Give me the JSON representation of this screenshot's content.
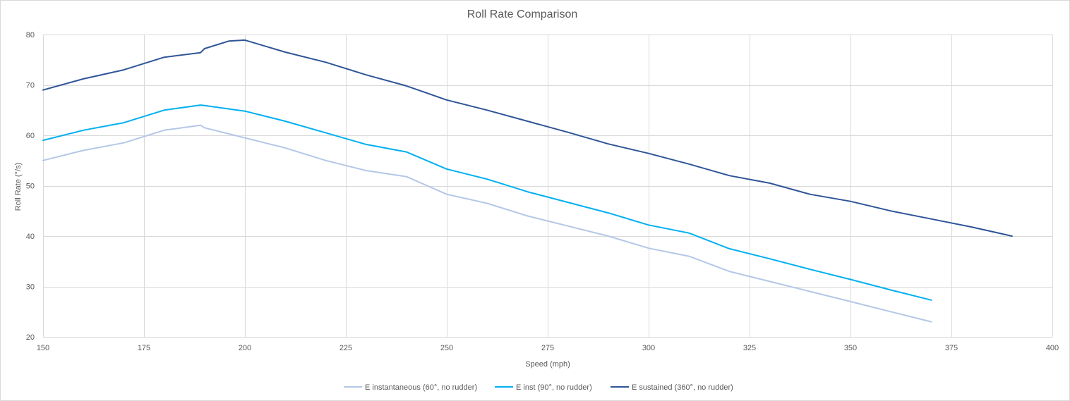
{
  "chart_data": {
    "type": "line",
    "title": "Roll Rate Comparison",
    "xlabel": "Speed (mph)",
    "ylabel": "Roll Rate (°/s)",
    "xlim": [
      150,
      400
    ],
    "ylim": [
      20,
      80
    ],
    "xticks": [
      150,
      175,
      200,
      225,
      250,
      275,
      300,
      325,
      350,
      375,
      400
    ],
    "yticks": [
      20,
      30,
      40,
      50,
      60,
      70,
      80
    ],
    "grid": true,
    "legend_position": "bottom",
    "series": [
      {
        "name": "E instantaneous (60°, no rudder)",
        "color": "#b4c7e7",
        "points": [
          [
            150,
            55
          ],
          [
            160,
            57
          ],
          [
            170,
            58.5
          ],
          [
            180,
            61
          ],
          [
            189,
            62
          ],
          [
            190,
            61.5
          ],
          [
            200,
            59.5
          ],
          [
            210,
            57.5
          ],
          [
            220,
            55
          ],
          [
            230,
            53
          ],
          [
            240,
            51.8
          ],
          [
            250,
            48.3
          ],
          [
            260,
            46.5
          ],
          [
            270,
            44
          ],
          [
            280,
            42
          ],
          [
            290,
            40
          ],
          [
            300,
            37.6
          ],
          [
            310,
            36
          ],
          [
            320,
            33
          ],
          [
            330,
            31
          ],
          [
            340,
            29
          ],
          [
            350,
            27
          ],
          [
            360,
            25
          ],
          [
            370,
            23
          ]
        ]
      },
      {
        "name": "E inst (90°, no rudder)",
        "color": "#00b0f0",
        "points": [
          [
            150,
            59
          ],
          [
            160,
            61
          ],
          [
            170,
            62.5
          ],
          [
            180,
            65
          ],
          [
            189,
            66
          ],
          [
            190,
            65.9
          ],
          [
            200,
            64.8
          ],
          [
            210,
            62.8
          ],
          [
            220,
            60.5
          ],
          [
            230,
            58.2
          ],
          [
            240,
            56.7
          ],
          [
            250,
            53.3
          ],
          [
            260,
            51.3
          ],
          [
            270,
            48.8
          ],
          [
            280,
            46.7
          ],
          [
            290,
            44.6
          ],
          [
            300,
            42.2
          ],
          [
            310,
            40.6
          ],
          [
            320,
            37.5
          ],
          [
            330,
            35.5
          ],
          [
            340,
            33.4
          ],
          [
            350,
            31.4
          ],
          [
            360,
            29.3
          ],
          [
            370,
            27.3
          ]
        ]
      },
      {
        "name": "E sustained (360°, no rudder)",
        "color": "#2f5597",
        "points": [
          [
            150,
            69
          ],
          [
            160,
            71.2
          ],
          [
            170,
            73
          ],
          [
            180,
            75.5
          ],
          [
            189,
            76.4
          ],
          [
            190,
            77.2
          ],
          [
            196,
            78.7
          ],
          [
            200,
            78.9
          ],
          [
            210,
            76.5
          ],
          [
            220,
            74.5
          ],
          [
            230,
            72
          ],
          [
            240,
            69.8
          ],
          [
            250,
            67
          ],
          [
            260,
            65
          ],
          [
            270,
            62.8
          ],
          [
            280,
            60.6
          ],
          [
            290,
            58.3
          ],
          [
            300,
            56.4
          ],
          [
            310,
            54.3
          ],
          [
            320,
            52
          ],
          [
            330,
            50.5
          ],
          [
            340,
            48.3
          ],
          [
            350,
            46.9
          ],
          [
            360,
            45
          ],
          [
            370,
            43.4
          ],
          [
            380,
            41.8
          ],
          [
            390,
            40
          ]
        ]
      }
    ]
  }
}
